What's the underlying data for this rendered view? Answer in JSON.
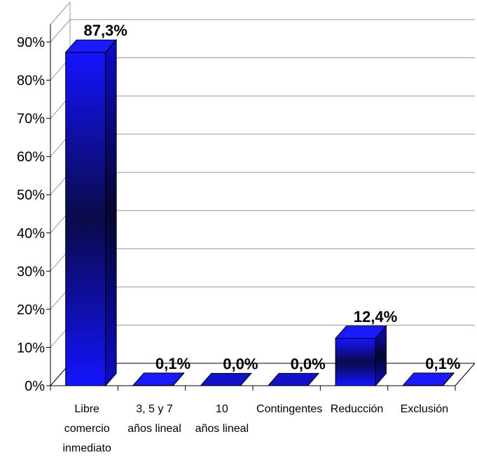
{
  "chart_data": {
    "type": "bar",
    "categories": [
      [
        "Libre",
        "comercio",
        "inmediato"
      ],
      [
        "3, 5 y 7",
        "años lineal"
      ],
      [
        "10",
        "años lineal"
      ],
      [
        "Contingentes"
      ],
      [
        "Reducción"
      ],
      [
        "Exclusión"
      ]
    ],
    "values": [
      87.3,
      0.1,
      0.0,
      0.0,
      12.4,
      0.1
    ],
    "data_labels": [
      "87,3%",
      "0,1%",
      "0,0%",
      "0,0%",
      "12,4%",
      "0,1%"
    ],
    "yticks": [
      "0%",
      "10%",
      "20%",
      "30%",
      "40%",
      "50%",
      "60%",
      "70%",
      "80%",
      "90%"
    ],
    "ylim": [
      0,
      90
    ],
    "grid": true,
    "bar_color": "#1010e0",
    "bar_dark_color": "#0a0a50"
  }
}
